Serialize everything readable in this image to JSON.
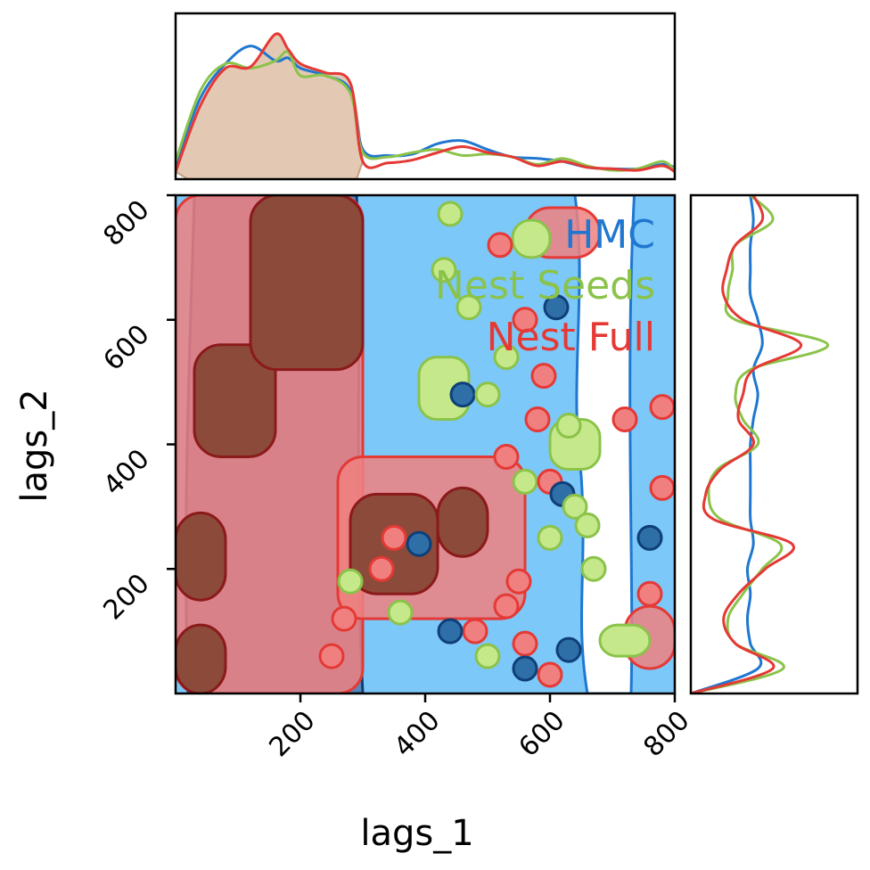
{
  "chart_data": {
    "type": "corner-kde",
    "xlabel": "lags_1",
    "ylabel": "lags_2",
    "xlim": [
      0,
      800
    ],
    "ylim": [
      0,
      800
    ],
    "xticks": [
      200,
      400,
      600,
      800
    ],
    "yticks": [
      200,
      400,
      600,
      800
    ],
    "legend_position": "top-right",
    "series": [
      {
        "name": "HMC",
        "color": "#1f77d0",
        "fill_light": "#7cc8f8",
        "fill_dark": "#5a86b8",
        "line_dark": "#0f3f78"
      },
      {
        "name": "Nest Seeds",
        "color": "#8bc34a",
        "fill_light": "#c5e88a",
        "fill_dark": "#7aa84a",
        "line_dark": "#4f7a2a"
      },
      {
        "name": "Nest Full",
        "color": "#e53935",
        "fill_light": "#f08080",
        "fill_dark": "#8b4a3a",
        "line_dark": "#8b1a1a"
      }
    ],
    "marginal_x": {
      "x": [
        0,
        40,
        80,
        120,
        160,
        180,
        200,
        240,
        280,
        300,
        340,
        380,
        420,
        460,
        500,
        540,
        580,
        620,
        660,
        700,
        740,
        780,
        800
      ],
      "HMC": [
        0.1,
        0.55,
        0.78,
        0.9,
        0.8,
        0.82,
        0.75,
        0.7,
        0.6,
        0.2,
        0.16,
        0.17,
        0.24,
        0.26,
        0.2,
        0.15,
        0.14,
        0.12,
        0.08,
        0.07,
        0.07,
        0.1,
        0.08
      ],
      "Nest Seeds": [
        0.12,
        0.6,
        0.78,
        0.75,
        0.8,
        0.86,
        0.7,
        0.7,
        0.58,
        0.18,
        0.15,
        0.18,
        0.2,
        0.16,
        0.17,
        0.15,
        0.1,
        0.14,
        0.09,
        0.06,
        0.07,
        0.12,
        0.06
      ],
      "Nest Full": [
        0.05,
        0.5,
        0.75,
        0.76,
        0.98,
        0.88,
        0.78,
        0.72,
        0.65,
        0.12,
        0.11,
        0.13,
        0.18,
        0.22,
        0.18,
        0.15,
        0.09,
        0.12,
        0.08,
        0.07,
        0.06,
        0.09,
        0.05
      ]
    },
    "marginal_y": {
      "y": [
        0,
        40,
        80,
        120,
        160,
        200,
        240,
        280,
        320,
        360,
        400,
        440,
        480,
        520,
        560,
        600,
        640,
        680,
        720,
        760,
        800
      ],
      "HMC": [
        0.0,
        0.45,
        0.4,
        0.38,
        0.4,
        0.38,
        0.42,
        0.4,
        0.4,
        0.4,
        0.4,
        0.42,
        0.45,
        0.42,
        0.48,
        0.45,
        0.4,
        0.4,
        0.4,
        0.42,
        0.4
      ],
      "Nest Seeds": [
        0.0,
        0.62,
        0.3,
        0.25,
        0.35,
        0.48,
        0.6,
        0.2,
        0.12,
        0.18,
        0.45,
        0.35,
        0.3,
        0.4,
        0.92,
        0.3,
        0.25,
        0.28,
        0.3,
        0.55,
        0.4
      ],
      "Nest Full": [
        0.0,
        0.55,
        0.3,
        0.22,
        0.32,
        0.5,
        0.68,
        0.15,
        0.1,
        0.2,
        0.42,
        0.32,
        0.35,
        0.42,
        0.74,
        0.35,
        0.22,
        0.24,
        0.3,
        0.48,
        0.42
      ]
    },
    "joint_regions": {
      "HMC_bands": [
        [
          0,
          800,
          0,
          800
        ]
      ],
      "Nest_Full_dark": [
        [
          0,
          80,
          0,
          110
        ],
        [
          0,
          80,
          150,
          290
        ],
        [
          30,
          160,
          380,
          560
        ],
        [
          120,
          300,
          520,
          800
        ],
        [
          280,
          420,
          160,
          320
        ],
        [
          420,
          500,
          220,
          330
        ]
      ],
      "Nest_Full_light": [
        [
          0,
          300,
          0,
          800
        ],
        [
          260,
          560,
          120,
          380
        ],
        [
          560,
          680,
          700,
          780
        ],
        [
          720,
          800,
          40,
          140
        ]
      ],
      "Nest_Seeds_blobs": [
        [
          390,
          470,
          440,
          540
        ],
        [
          540,
          600,
          700,
          760
        ],
        [
          600,
          680,
          360,
          440
        ],
        [
          680,
          760,
          60,
          110
        ]
      ]
    }
  }
}
